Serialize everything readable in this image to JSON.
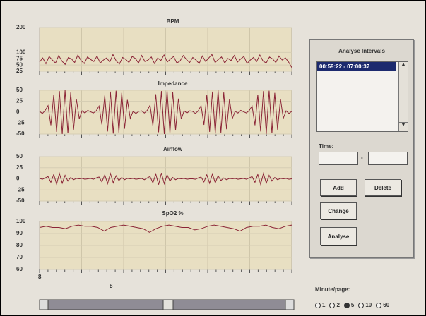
{
  "chart_data": [
    {
      "type": "line",
      "title": "BPM",
      "color": "#8b2436",
      "ylim": [
        25,
        200
      ],
      "yticks": [
        200,
        100,
        75,
        50,
        25
      ],
      "values": [
        62,
        78,
        55,
        84,
        70,
        58,
        88,
        66,
        52,
        80,
        74,
        60,
        90,
        68,
        56,
        82,
        72,
        64,
        86,
        58,
        70,
        78,
        62,
        92,
        66,
        54,
        80,
        72,
        60,
        84,
        76,
        58,
        88,
        64,
        70,
        82,
        56,
        78,
        68,
        90,
        62,
        74,
        84,
        58,
        66,
        88,
        72,
        60,
        80,
        70,
        56,
        86,
        64,
        78,
        92,
        60,
        72,
        82,
        58,
        76,
        68,
        88,
        62,
        74,
        84,
        56,
        70,
        80,
        64,
        90,
        66,
        58,
        82,
        74,
        60,
        86,
        70,
        78,
        62,
        40
      ]
    },
    {
      "type": "line",
      "title": "Impedance",
      "color": "#8b2436",
      "ylim": [
        -50,
        50
      ],
      "yticks": [
        50,
        25,
        0,
        -25,
        -50
      ],
      "values": [
        2,
        -3,
        4,
        15,
        -30,
        40,
        -45,
        48,
        -50,
        50,
        -48,
        45,
        -40,
        30,
        -15,
        3,
        -2,
        4,
        1,
        -2,
        3,
        14,
        -28,
        38,
        -44,
        47,
        -49,
        49,
        -47,
        44,
        -38,
        28,
        -14,
        2,
        -3,
        2,
        3,
        -2,
        4,
        16,
        -31,
        41,
        -46,
        48,
        -50,
        50,
        -48,
        46,
        -41,
        31,
        -16,
        3,
        -2,
        3,
        2,
        -3,
        3,
        15,
        -29,
        39,
        -45,
        47,
        -49,
        50,
        -47,
        45,
        -39,
        29,
        -15,
        2,
        -2,
        4,
        1,
        -2,
        4,
        14,
        -30,
        40,
        -44,
        48,
        -50,
        49,
        -48,
        44,
        -40,
        30,
        -14,
        3,
        -3,
        2
      ]
    },
    {
      "type": "line",
      "title": "Airflow",
      "color": "#8b2436",
      "ylim": [
        -50,
        50
      ],
      "yticks": [
        50,
        25,
        0,
        -25,
        -50
      ],
      "values": [
        1,
        -1,
        2,
        5,
        -8,
        10,
        -12,
        12,
        -10,
        8,
        -5,
        3,
        -2,
        1,
        0,
        1,
        -1,
        0,
        1,
        -1,
        2,
        4,
        -7,
        9,
        -11,
        12,
        -9,
        7,
        -4,
        3,
        -2,
        1,
        0,
        1,
        -1,
        0,
        1,
        -2,
        2,
        5,
        -9,
        11,
        -13,
        13,
        -11,
        9,
        -5,
        3,
        -2,
        1,
        0,
        1,
        -1,
        0,
        0,
        -1,
        2,
        4,
        -7,
        9,
        -10,
        11,
        -9,
        7,
        -4,
        2,
        -2,
        1,
        0,
        1,
        -1,
        0,
        1,
        -1,
        2,
        5,
        -8,
        10,
        -12,
        12,
        -10,
        8,
        -5,
        3,
        -2,
        1,
        0,
        1,
        -1,
        0
      ]
    },
    {
      "type": "line",
      "title": "SpO2 %",
      "color": "#8b2436",
      "ylim": [
        60,
        100
      ],
      "yticks": [
        100,
        90,
        80,
        70,
        60
      ],
      "values": [
        95,
        96,
        95,
        95,
        94,
        96,
        97,
        96,
        96,
        95,
        92,
        95,
        96,
        97,
        96,
        95,
        94,
        91,
        94,
        96,
        97,
        96,
        95,
        95,
        93,
        94,
        96,
        97,
        96,
        95,
        94,
        92,
        95,
        96,
        96,
        97,
        95,
        94,
        96,
        97
      ]
    }
  ],
  "axis_labels": [
    "8",
    "8"
  ],
  "intervals_panel": {
    "title": "Analyse Intervals",
    "list_items": [
      "00:59:22 - 07:00:37"
    ],
    "time_label": "Time:",
    "time_separator": "-",
    "buttons": {
      "add": "Add",
      "delete": "Delete",
      "change": "Change",
      "analyse": "Analyse"
    }
  },
  "minute_page": {
    "label": "Minute/page:",
    "options": [
      "1",
      "2",
      "5",
      "10",
      "60"
    ],
    "selected": 2
  }
}
